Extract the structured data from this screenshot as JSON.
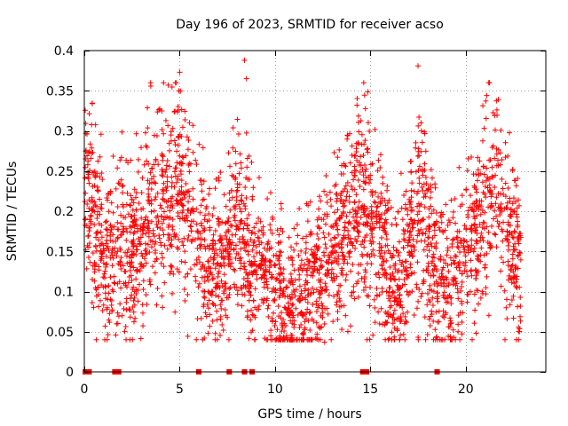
{
  "chart_data": {
    "type": "scatter",
    "title": "Day 196 of 2023, SRMTID for receiver acso",
    "xlabel": "GPS time / hours",
    "ylabel": "SRMTID / TECUs",
    "xlim": [
      0,
      24.2
    ],
    "ylim": [
      0,
      0.4
    ],
    "xticks": [
      0,
      5,
      10,
      15,
      20
    ],
    "xtick_labels": [
      "0",
      "5",
      "10",
      "15",
      "20"
    ],
    "yticks": [
      0,
      0.05,
      0.1,
      0.15,
      0.2,
      0.25,
      0.3,
      0.35,
      0.4
    ],
    "ytick_labels": [
      "0",
      "0.05",
      "0.1",
      "0.15",
      "0.2",
      "0.25",
      "0.3",
      "0.35",
      "0.4"
    ],
    "grid": true,
    "marker": "+",
    "color": "#ff0000",
    "series_name": "acso",
    "x_range_hours": [
      0.0,
      22.9
    ],
    "points_estimated_count": 3000,
    "trend_points": [
      {
        "x": 0.0,
        "y": 0.22
      },
      {
        "x": 0.5,
        "y": 0.2
      },
      {
        "x": 1.0,
        "y": 0.13
      },
      {
        "x": 1.5,
        "y": 0.15
      },
      {
        "x": 2.0,
        "y": 0.18
      },
      {
        "x": 2.5,
        "y": 0.14
      },
      {
        "x": 3.0,
        "y": 0.17
      },
      {
        "x": 3.5,
        "y": 0.2
      },
      {
        "x": 4.0,
        "y": 0.22
      },
      {
        "x": 4.5,
        "y": 0.2
      },
      {
        "x": 5.0,
        "y": 0.25
      },
      {
        "x": 5.5,
        "y": 0.2
      },
      {
        "x": 6.0,
        "y": 0.16
      },
      {
        "x": 6.5,
        "y": 0.12
      },
      {
        "x": 7.0,
        "y": 0.13
      },
      {
        "x": 7.5,
        "y": 0.14
      },
      {
        "x": 8.0,
        "y": 0.2
      },
      {
        "x": 8.5,
        "y": 0.16
      },
      {
        "x": 9.0,
        "y": 0.12
      },
      {
        "x": 9.5,
        "y": 0.12
      },
      {
        "x": 10.0,
        "y": 0.11
      },
      {
        "x": 10.5,
        "y": 0.09
      },
      {
        "x": 11.0,
        "y": 0.09
      },
      {
        "x": 11.5,
        "y": 0.1
      },
      {
        "x": 12.0,
        "y": 0.11
      },
      {
        "x": 12.5,
        "y": 0.13
      },
      {
        "x": 13.0,
        "y": 0.15
      },
      {
        "x": 13.5,
        "y": 0.17
      },
      {
        "x": 14.0,
        "y": 0.19
      },
      {
        "x": 14.5,
        "y": 0.21
      },
      {
        "x": 15.0,
        "y": 0.2
      },
      {
        "x": 15.5,
        "y": 0.17
      },
      {
        "x": 16.0,
        "y": 0.11
      },
      {
        "x": 16.5,
        "y": 0.1
      },
      {
        "x": 17.0,
        "y": 0.15
      },
      {
        "x": 17.5,
        "y": 0.2
      },
      {
        "x": 18.0,
        "y": 0.17
      },
      {
        "x": 18.5,
        "y": 0.12
      },
      {
        "x": 19.0,
        "y": 0.11
      },
      {
        "x": 19.5,
        "y": 0.12
      },
      {
        "x": 20.0,
        "y": 0.15
      },
      {
        "x": 20.5,
        "y": 0.17
      },
      {
        "x": 21.0,
        "y": 0.2
      },
      {
        "x": 21.5,
        "y": 0.23
      },
      {
        "x": 22.0,
        "y": 0.19
      },
      {
        "x": 22.5,
        "y": 0.15
      },
      {
        "x": 22.9,
        "y": 0.14
      }
    ],
    "notable_peaks": [
      {
        "x": 8.4,
        "y": 0.388
      },
      {
        "x": 17.5,
        "y": 0.381
      },
      {
        "x": 5.0,
        "y": 0.373
      },
      {
        "x": 8.5,
        "y": 0.365
      },
      {
        "x": 4.4,
        "y": 0.357
      },
      {
        "x": 21.1,
        "y": 0.344
      },
      {
        "x": 14.3,
        "y": 0.332
      }
    ],
    "notable_minima": [
      {
        "x": 12.6,
        "y": 0.037
      },
      {
        "x": 10.6,
        "y": 0.045
      },
      {
        "x": 19.6,
        "y": 0.05
      }
    ],
    "zero_markers_x": [
      0.05,
      0.15,
      0.25,
      1.6,
      1.7,
      1.8,
      6.0,
      7.6,
      8.4,
      8.8,
      14.6,
      14.7,
      14.8,
      18.5
    ]
  }
}
